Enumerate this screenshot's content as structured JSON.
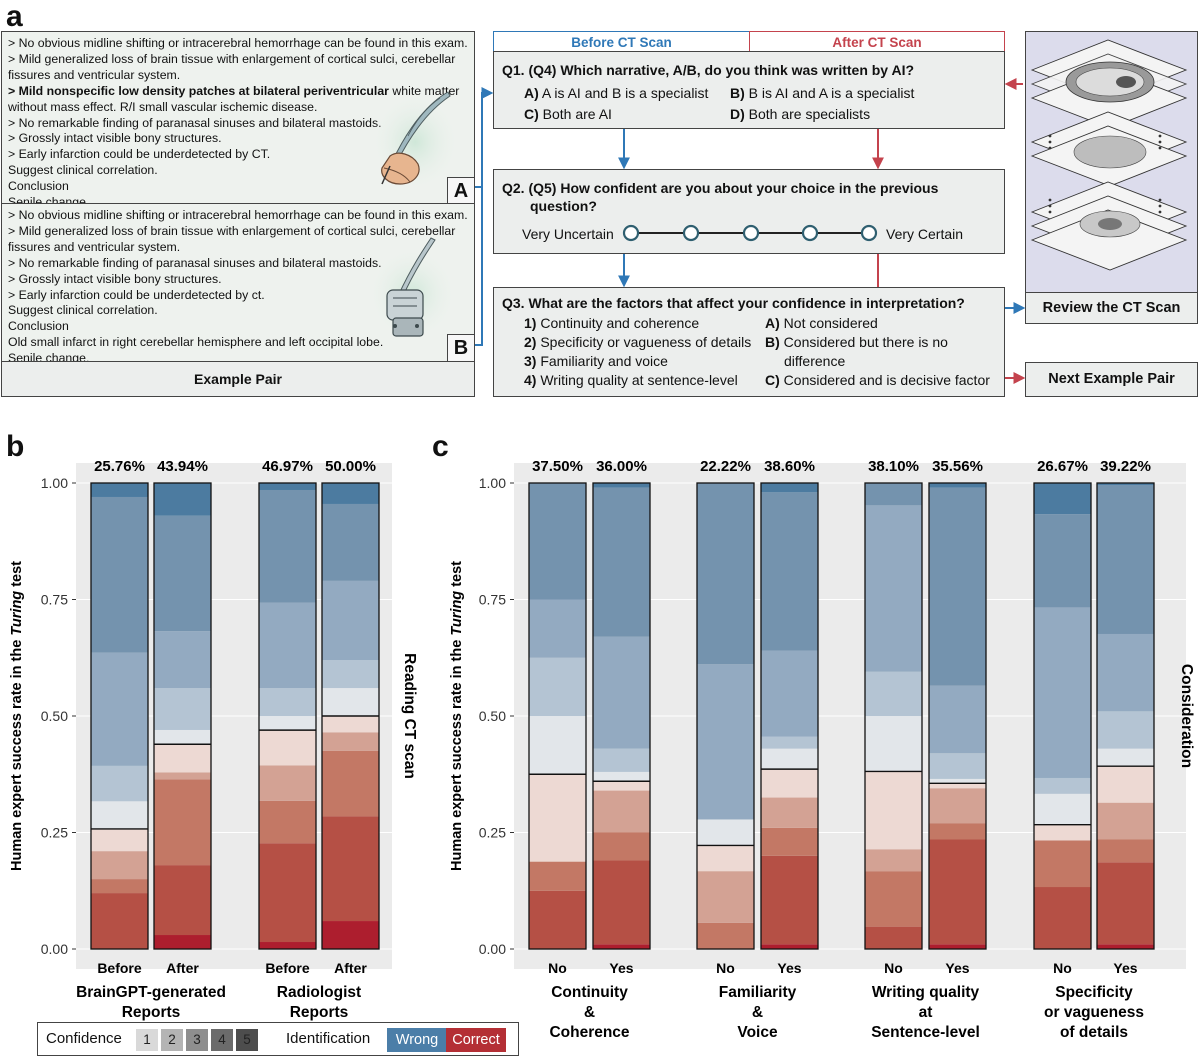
{
  "panel_labels": {
    "a": "a",
    "b": "b",
    "c": "c"
  },
  "narrative_a": {
    "lines": [
      {
        "text": "> No obvious midline shifting or intracerebral hemorrhage can be found in this exam.",
        "bold": false
      },
      {
        "text": "> Mild generalized loss of brain tissue with enlargement of cortical sulci, cerebellar fissures and ventricular system.",
        "bold": false
      },
      {
        "text": "> Mild nonspecific low density patches at bilateral periventricular",
        "bold": true,
        "rest": " white matter without mass effect. R/I small vascular ischemic disease."
      },
      {
        "text": "> No remarkable finding of paranasal sinuses and bilateral mastoids.",
        "bold": false
      },
      {
        "text": "> Grossly intact visible bony structures.",
        "bold": false
      },
      {
        "text": "> Early infarction could be underdetected by CT.",
        "bold": false
      },
      {
        "text": "Suggest clinical correlation.",
        "bold": false
      },
      {
        "text": "Conclusion",
        "bold": false
      },
      {
        "text": "Senile change.",
        "bold": false
      }
    ],
    "badge": "A"
  },
  "narrative_b": {
    "lines": [
      {
        "text": "> No obvious midline shifting or intracerebral hemorrhage can be found in this exam.",
        "bold": false
      },
      {
        "text": "> Mild generalized loss of brain tissue with enlargement of cortical sulci, cerebellar fissures and ventricular system.",
        "bold": false
      },
      {
        "text": "> No remarkable finding of paranasal sinuses and bilateral mastoids.",
        "bold": false
      },
      {
        "text": "> Grossly intact visible bony structures.",
        "bold": false
      },
      {
        "text": "> Early infarction could be underdetected by ct.",
        "bold": false
      },
      {
        "text": "Suggest clinical correlation.",
        "bold": false
      },
      {
        "text": "Conclusion",
        "bold": false
      },
      {
        "text": "Old small infarct in right cerebellar hemisphere and left occipital lobe.",
        "bold": false
      },
      {
        "text": "Senile change.",
        "bold": false
      }
    ],
    "badge": "B"
  },
  "example_pair_label": "Example Pair",
  "tabs": {
    "before": "Before CT Scan",
    "after": "After CT Scan"
  },
  "q1": {
    "title": "Q1. (Q4) Which narrative, A/B, do you think was written by AI?",
    "options": [
      {
        "key": "A)",
        "text": "A is AI and B is a specialist"
      },
      {
        "key": "B)",
        "text": "B is AI and A is a specialist"
      },
      {
        "key": "C)",
        "text": "Both are AI"
      },
      {
        "key": "D)",
        "text": "Both are specialists"
      }
    ]
  },
  "q2": {
    "title": "Q2. (Q5) How confident are you about your choice in the previous",
    "title2": "question?",
    "left": "Very Uncertain",
    "right": "Very Certain"
  },
  "q3": {
    "title": "Q3. What are the factors that affect your confidence in interpretation?",
    "factors": [
      {
        "key": "1)",
        "text": "Continuity and coherence"
      },
      {
        "key": "2)",
        "text": "Specificity or vagueness of details"
      },
      {
        "key": "3)",
        "text": "Familiarity and voice"
      },
      {
        "key": "4)",
        "text": "Writing quality at sentence-level"
      }
    ],
    "answers": [
      {
        "key": "A)",
        "text": "Not considered"
      },
      {
        "key": "B)",
        "text": "Considered but there is no"
      },
      {
        "key": "",
        "text": "difference"
      },
      {
        "key": "C)",
        "text": "Considered and is decisive factor"
      }
    ]
  },
  "review_label": "Review the CT Scan",
  "next_label": "Next Example Pair",
  "colors": {
    "wrong": [
      "#4c7ba0",
      "#7493ae",
      "#93aac1",
      "#b4c4d3",
      "#e2e6ea"
    ],
    "correct": [
      "#ad1e2e",
      "#b55045",
      "#c37865",
      "#d3a294",
      "#edd9d3"
    ],
    "legend_wrong": "#4b7ea8",
    "legend_correct": "#b42f35",
    "arrow_blue": "#2f78b7",
    "arrow_red": "#c4434d"
  },
  "chart_data": [
    {
      "type": "bar",
      "stacked": true,
      "ylabel_prefix": "Human expert success rate in the ",
      "ylabel_italic": "Turing",
      "ylabel_suffix": " test",
      "ylim": [
        0,
        1
      ],
      "yticks": [
        "0.00",
        "0.25",
        "0.50",
        "0.75",
        "1.00"
      ],
      "ytick_values": [
        0,
        0.25,
        0.5,
        0.75,
        1.0
      ],
      "facet_title": "Reading CT scan",
      "groups": [
        {
          "label_lines": [
            "BrainGPT-generated",
            "Reports"
          ]
        },
        {
          "label_lines": [
            "Radiologist",
            "Reports"
          ]
        }
      ],
      "bars": [
        {
          "x": "Before",
          "top_label": "25.76%",
          "correct": 0.2576,
          "segments": [
            0,
            0.12,
            0.15,
            0.21,
            0.2576,
            0.317,
            0.393,
            0.636,
            0.97,
            1.0
          ]
        },
        {
          "x": "After",
          "top_label": "43.94%",
          "correct": 0.4394,
          "segments": [
            0.03,
            0.18,
            0.364,
            0.379,
            0.4394,
            0.47,
            0.56,
            0.682,
            0.93,
            1.0
          ]
        },
        {
          "x": "Before",
          "top_label": "46.97%",
          "correct": 0.4697,
          "segments": [
            0.015,
            0.227,
            0.318,
            0.394,
            0.4697,
            0.5,
            0.56,
            0.743,
            0.985,
            1.0
          ]
        },
        {
          "x": "After",
          "top_label": "50.00%",
          "correct": 0.5,
          "segments": [
            0.06,
            0.285,
            0.425,
            0.465,
            0.5,
            0.56,
            0.62,
            0.79,
            0.955,
            1.0
          ]
        }
      ]
    },
    {
      "type": "bar",
      "stacked": true,
      "ylabel_prefix": "Human expert success rate in the ",
      "ylabel_italic": "Turing",
      "ylabel_suffix": " test",
      "ylim": [
        0,
        1
      ],
      "yticks": [
        "0.00",
        "0.25",
        "0.50",
        "0.75",
        "1.00"
      ],
      "ytick_values": [
        0,
        0.25,
        0.5,
        0.75,
        1.0
      ],
      "facet_title": "Consideration",
      "groups": [
        {
          "label_lines": [
            "Continuity",
            "&",
            "Coherence"
          ]
        },
        {
          "label_lines": [
            "Familiarity",
            "&",
            "Voice"
          ]
        },
        {
          "label_lines": [
            "Writing quality",
            "at",
            "Sentence-level"
          ]
        },
        {
          "label_lines": [
            "Specificity",
            "or vagueness",
            "of details"
          ]
        }
      ],
      "bars": [
        {
          "x": "No",
          "top_label": "37.50%",
          "correct": 0.375,
          "segments": [
            0,
            0.125,
            0.1875,
            0.1875,
            0.375,
            0.5,
            0.625,
            0.75,
            1.0,
            1.0
          ]
        },
        {
          "x": "Yes",
          "top_label": "36.00%",
          "correct": 0.36,
          "segments": [
            0.01,
            0.19,
            0.25,
            0.34,
            0.36,
            0.38,
            0.43,
            0.67,
            0.99,
            1.0
          ]
        },
        {
          "x": "No",
          "top_label": "22.22%",
          "correct": 0.2222,
          "segments": [
            0,
            0,
            0.056,
            0.167,
            0.2222,
            0.278,
            0.278,
            0.611,
            1.0,
            1.0
          ]
        },
        {
          "x": "Yes",
          "top_label": "38.60%",
          "correct": 0.386,
          "segments": [
            0.01,
            0.2,
            0.26,
            0.325,
            0.386,
            0.43,
            0.456,
            0.64,
            0.98,
            1.0
          ]
        },
        {
          "x": "No",
          "top_label": "38.10%",
          "correct": 0.381,
          "segments": [
            0,
            0.048,
            0.167,
            0.214,
            0.381,
            0.5,
            0.595,
            0.952,
            1.0,
            1.0
          ]
        },
        {
          "x": "Yes",
          "top_label": "35.56%",
          "correct": 0.3556,
          "segments": [
            0.01,
            0.235,
            0.27,
            0.345,
            0.3556,
            0.365,
            0.42,
            0.565,
            0.99,
            1.0
          ]
        },
        {
          "x": "No",
          "top_label": "26.67%",
          "correct": 0.2667,
          "segments": [
            0,
            0.133,
            0.233,
            0.233,
            0.2667,
            0.333,
            0.367,
            0.733,
            0.933,
            1.0
          ]
        },
        {
          "x": "Yes",
          "top_label": "39.22%",
          "correct": 0.3922,
          "segments": [
            0.01,
            0.186,
            0.235,
            0.314,
            0.3922,
            0.43,
            0.51,
            0.676,
            0.995,
            1.0
          ]
        }
      ]
    }
  ],
  "legend": {
    "confidence_label": "Confidence",
    "levels": [
      "1",
      "2",
      "3",
      "4",
      "5"
    ],
    "level_colors": [
      "#d9d9d9",
      "#b4b4b4",
      "#8e8e8e",
      "#6b6b6b",
      "#4d4d4d"
    ],
    "identification_label": "Identification",
    "wrong": "Wrong",
    "correct": "Correct"
  }
}
